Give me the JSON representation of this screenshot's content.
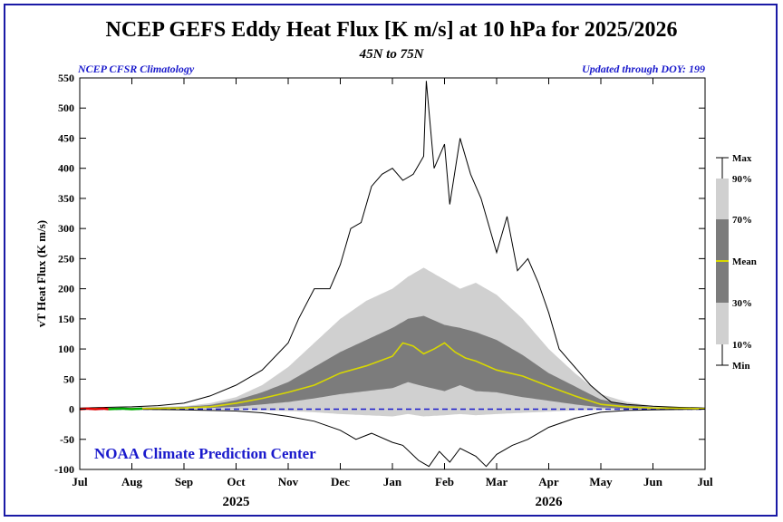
{
  "title": "NCEP GEFS Eddy Heat Flux [K m/s] at 10 hPa for 2025/2026",
  "subtitle": "45N to 75N",
  "left_note": "NCEP CFSR Climatology",
  "right_note": "Updated through DOY: 199",
  "watermark": "NOAA Climate Prediction Center",
  "colors": {
    "frame": "#1a1aa6",
    "band_outer": "#d0d0d0",
    "band_mid": "#a6a6a6",
    "band_inner": "#7c7c7c",
    "mean": "#d8d800",
    "obs_red": "#dd0000",
    "obs_green": "#00aa00",
    "zero_line": "#1a1acc",
    "watermark": "#1a1acc"
  },
  "chart_data": {
    "type": "area",
    "title": "NCEP GEFS Eddy Heat Flux [K m/s] at 10 hPa for 2025/2026",
    "ylabel": "vT Heat Flux (K m/s)",
    "xlabel": "",
    "ylim": [
      -100,
      550
    ],
    "yticks": [
      -100,
      -50,
      0,
      50,
      100,
      150,
      200,
      250,
      300,
      350,
      400,
      450,
      500,
      550
    ],
    "xticks": [
      "Jul",
      "Aug",
      "Sep",
      "Oct",
      "Nov",
      "Dec",
      "Jan",
      "Feb",
      "Mar",
      "Apr",
      "May",
      "Jun",
      "Jul"
    ],
    "year_labels": [
      {
        "text": "2025",
        "at_month": 3
      },
      {
        "text": "2026",
        "at_month": 9
      }
    ],
    "x_units": "months since Jul 1 2025",
    "legend": {
      "placement": "right",
      "items": [
        "Max",
        "90%",
        "70%",
        "Mean",
        "30%",
        "10%",
        "Min"
      ]
    },
    "series": [
      {
        "name": "Max",
        "x": [
          0,
          0.5,
          1,
          1.5,
          2,
          2.5,
          3,
          3.5,
          4,
          4.2,
          4.5,
          4.8,
          5,
          5.2,
          5.4,
          5.6,
          5.8,
          6,
          6.2,
          6.4,
          6.6,
          6.65,
          6.8,
          7,
          7.1,
          7.3,
          7.5,
          7.7,
          8,
          8.2,
          8.4,
          8.6,
          8.8,
          9,
          9.2,
          9.4,
          9.6,
          9.8,
          10,
          10.2,
          10.5,
          11,
          11.5,
          12
        ],
        "y": [
          2,
          3,
          4,
          6,
          10,
          22,
          40,
          65,
          110,
          150,
          200,
          200,
          240,
          300,
          310,
          370,
          390,
          400,
          380,
          390,
          420,
          545,
          400,
          440,
          340,
          450,
          390,
          350,
          260,
          320,
          230,
          250,
          210,
          160,
          100,
          80,
          60,
          40,
          25,
          12,
          8,
          5,
          3,
          2
        ]
      },
      {
        "name": "90%",
        "x": [
          0,
          1,
          2,
          2.5,
          3,
          3.5,
          4,
          4.5,
          5,
          5.5,
          6,
          6.3,
          6.6,
          7,
          7.3,
          7.6,
          8,
          8.5,
          9,
          9.5,
          10,
          10.5,
          11,
          12
        ],
        "y": [
          2,
          3,
          5,
          10,
          20,
          40,
          70,
          110,
          150,
          180,
          200,
          220,
          235,
          215,
          200,
          210,
          190,
          150,
          100,
          60,
          25,
          12,
          5,
          3
        ]
      },
      {
        "name": "70%",
        "x": [
          0,
          1,
          2,
          2.5,
          3,
          3.5,
          4,
          4.5,
          5,
          5.5,
          6,
          6.3,
          6.6,
          7,
          7.3,
          7.6,
          8,
          8.5,
          9,
          9.5,
          10,
          10.5,
          11,
          12
        ],
        "y": [
          1,
          2,
          4,
          7,
          15,
          28,
          45,
          70,
          95,
          115,
          135,
          150,
          155,
          140,
          135,
          128,
          115,
          90,
          60,
          38,
          16,
          8,
          3,
          2
        ]
      },
      {
        "name": "Mean",
        "x": [
          0,
          1,
          2,
          2.5,
          3,
          3.5,
          4,
          4.5,
          5,
          5.5,
          6,
          6.2,
          6.4,
          6.6,
          6.8,
          7,
          7.2,
          7.4,
          7.6,
          8,
          8.5,
          9,
          9.5,
          10,
          10.5,
          11,
          12
        ],
        "y": [
          1,
          1,
          2,
          4,
          10,
          18,
          28,
          40,
          60,
          72,
          88,
          110,
          105,
          92,
          100,
          110,
          95,
          85,
          80,
          65,
          55,
          38,
          22,
          8,
          4,
          2,
          1
        ]
      },
      {
        "name": "30%",
        "x": [
          0,
          1,
          2,
          2.5,
          3,
          3.5,
          4,
          4.5,
          5,
          5.5,
          6,
          6.3,
          6.6,
          7,
          7.3,
          7.6,
          8,
          8.5,
          9,
          9.5,
          10,
          10.5,
          11,
          12
        ],
        "y": [
          0,
          0,
          1,
          2,
          4,
          8,
          12,
          18,
          25,
          30,
          35,
          45,
          38,
          30,
          40,
          30,
          28,
          20,
          14,
          8,
          3,
          1,
          0,
          0
        ]
      },
      {
        "name": "10%",
        "x": [
          0,
          1,
          2,
          2.5,
          3,
          3.5,
          4,
          4.5,
          5,
          5.5,
          6,
          6.3,
          6.6,
          7,
          7.3,
          7.6,
          8,
          8.5,
          9,
          9.5,
          10,
          10.5,
          11,
          12
        ],
        "y": [
          0,
          0,
          0,
          0,
          -1,
          -2,
          -3,
          -5,
          -8,
          -10,
          -12,
          -8,
          -12,
          -10,
          -8,
          -10,
          -8,
          -6,
          -4,
          -2,
          -1,
          0,
          0,
          0
        ]
      },
      {
        "name": "Min",
        "x": [
          0,
          1,
          2,
          2.5,
          3,
          3.5,
          4,
          4.5,
          5,
          5.3,
          5.6,
          6,
          6.2,
          6.5,
          6.7,
          6.9,
          7.1,
          7.3,
          7.6,
          7.8,
          8,
          8.3,
          8.6,
          9,
          9.5,
          10,
          10.5,
          11,
          12
        ],
        "y": [
          0,
          0,
          -1,
          -2,
          -3,
          -6,
          -12,
          -20,
          -35,
          -50,
          -40,
          -55,
          -60,
          -85,
          -95,
          -70,
          -88,
          -65,
          -78,
          -95,
          -75,
          -60,
          -50,
          -30,
          -15,
          -5,
          -2,
          -1,
          0
        ]
      },
      {
        "name": "2025 obs (red)",
        "x": [
          0,
          0.15,
          0.3,
          0.45,
          0.55
        ],
        "y": [
          0,
          1,
          0,
          1,
          0
        ]
      },
      {
        "name": "2025 obs (green)",
        "x": [
          0.55,
          0.8,
          1.0,
          1.2
        ],
        "y": [
          0,
          1,
          0,
          1
        ]
      }
    ]
  }
}
